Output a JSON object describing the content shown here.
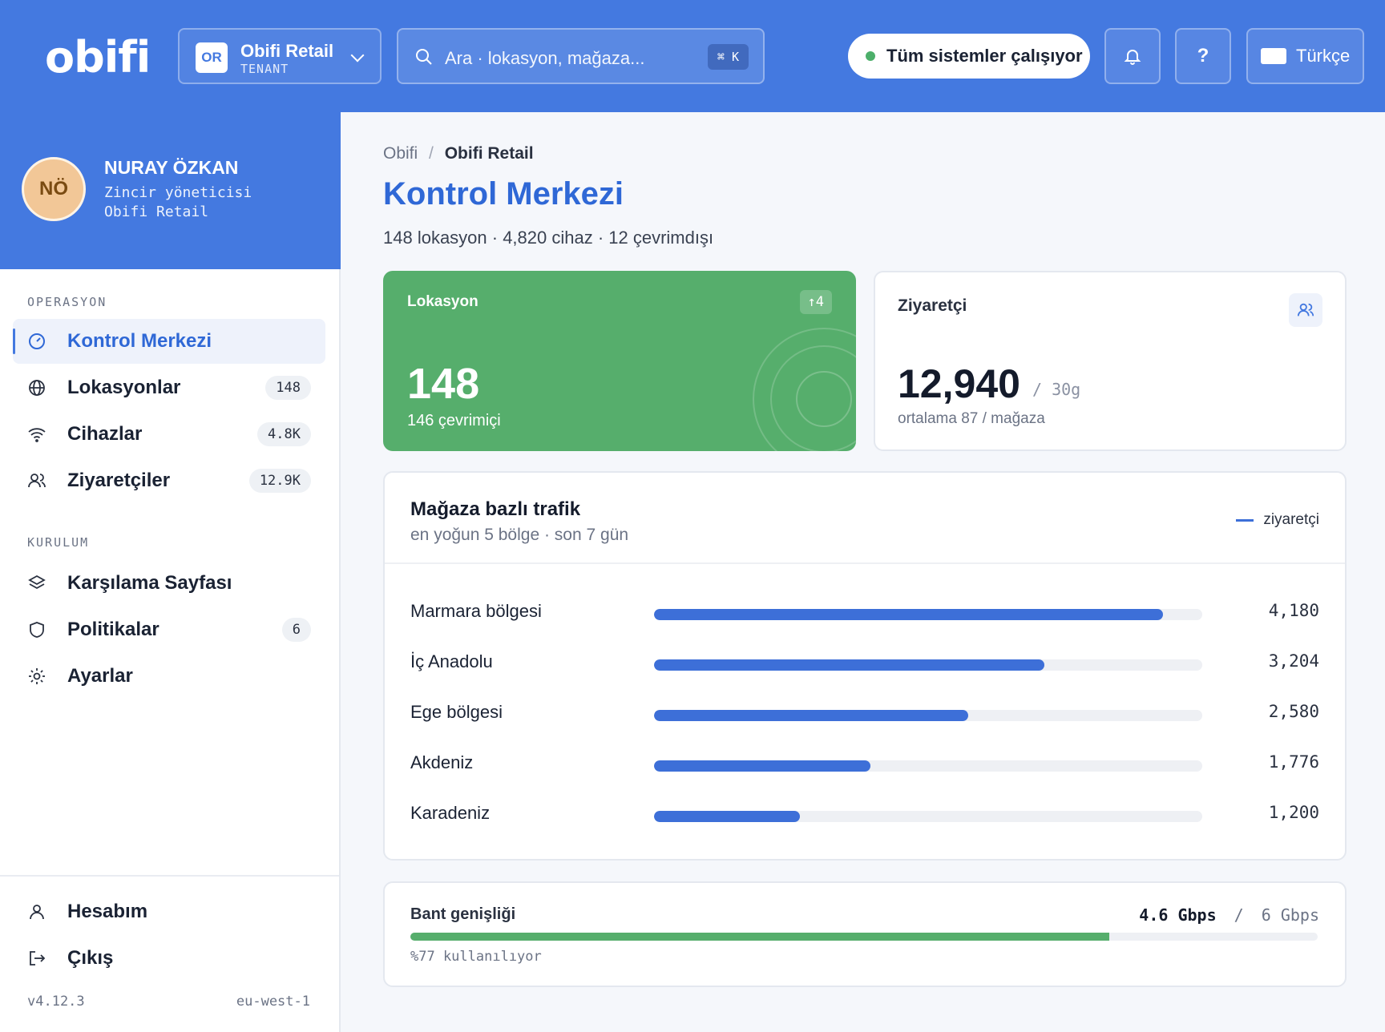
{
  "header": {
    "logo": "obifi",
    "tenant": {
      "initials": "OR",
      "name": "Obifi Retail",
      "type": "TENANT"
    },
    "search": {
      "placeholder": "Ara · lokasyon, mağaza...",
      "shortcut": "⌘ K"
    },
    "status": {
      "text": "Tüm sistemler çalışıyor",
      "color": "#4caf6a"
    },
    "help": "?",
    "language": "Türkçe"
  },
  "profile": {
    "initials": "NÖ",
    "name": "NURAY ÖZKAN",
    "role": "Zincir yöneticisi",
    "org": "Obifi Retail"
  },
  "sidebar": {
    "sections": [
      {
        "label": "OPERASYON",
        "items": [
          {
            "label": "Kontrol Merkezi",
            "icon": "gauge-icon",
            "badge": "",
            "active": true
          },
          {
            "label": "Lokasyonlar",
            "icon": "globe-icon",
            "badge": "148"
          },
          {
            "label": "Cihazlar",
            "icon": "wifi-icon",
            "badge": "4.8K"
          },
          {
            "label": "Ziyaretçiler",
            "icon": "users-icon",
            "badge": "12.9K"
          }
        ]
      },
      {
        "label": "KURULUM",
        "items": [
          {
            "label": "Karşılama Sayfası",
            "icon": "layers-icon",
            "badge": ""
          },
          {
            "label": "Politikalar",
            "icon": "shield-icon",
            "badge": "6"
          },
          {
            "label": "Ayarlar",
            "icon": "gear-icon",
            "badge": ""
          }
        ]
      }
    ],
    "bottom": [
      {
        "label": "Hesabım",
        "icon": "user-icon"
      },
      {
        "label": "Çıkış",
        "icon": "logout-icon"
      }
    ],
    "version": "v4.12.3",
    "region": "eu-west-1"
  },
  "main": {
    "breadcrumb": {
      "root": "Obifi",
      "separator": "/",
      "current": "Obifi Retail"
    },
    "title": "Kontrol Merkezi",
    "subtitle": "148 lokasyon · 4,820 cihaz · 12 çevrimdışı",
    "kpi_locations": {
      "label": "Lokasyon",
      "delta": "↑4",
      "value": "148",
      "sub": "146 çevrimiçi"
    },
    "kpi_visitors": {
      "label": "Ziyaretçi",
      "value": "12,940",
      "unit": "/ 30g",
      "sub": "ortalama 87 / mağaza"
    },
    "traffic": {
      "title": "Mağaza bazlı trafik",
      "subtitle": "en yoğun 5 bölge · son 7 gün",
      "legend": "ziyaretçi",
      "max": 4500,
      "rows": [
        {
          "label": "Marmara bölgesi",
          "value": 4180,
          "display": "4,180"
        },
        {
          "label": "İç Anadolu",
          "value": 3204,
          "display": "3,204"
        },
        {
          "label": "Ege bölgesi",
          "value": 2580,
          "display": "2,580"
        },
        {
          "label": "Akdeniz",
          "value": 1776,
          "display": "1,776"
        },
        {
          "label": "Karadeniz",
          "value": 1200,
          "display": "1,200"
        }
      ]
    },
    "bandwidth": {
      "label": "Bant genişliği",
      "used": "4.6 Gbps",
      "separator": "/",
      "total": "6 Gbps",
      "fraction": 0.77,
      "sub": "%77 kullanılıyor"
    }
  }
}
